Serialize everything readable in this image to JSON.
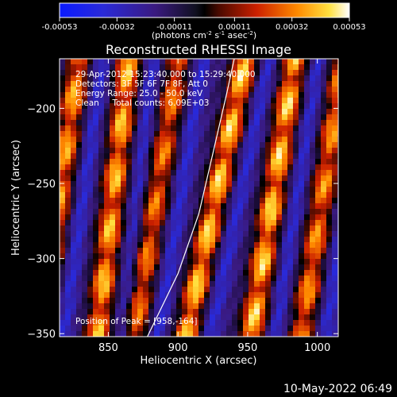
{
  "chart_data": {
    "type": "heatmap",
    "title": "Reconstructed RHESSI Image",
    "xlabel": "Heliocentric X (arcsec)",
    "ylabel": "Heliocentric Y (arcsec)",
    "xlim": [
      815,
      1015
    ],
    "ylim": [
      -352,
      -167
    ],
    "x_ticks": [
      850,
      900,
      950,
      1000
    ],
    "y_ticks": [
      -200,
      -250,
      -300,
      -350
    ],
    "colorbar": {
      "ticks": [
        "-0.00053",
        "-0.00032",
        "-0.00011",
        "0.00011",
        "0.00032",
        "0.00053"
      ],
      "range": [
        -0.00053,
        0.00053
      ],
      "unit_label": "(photons cm",
      "unit_sup1": "-2",
      "unit_mid": " s",
      "unit_sup2": "-1",
      "unit_mid2": " asec",
      "unit_sup3": "-2",
      "unit_end": ")"
    },
    "annotations": [
      "29-Apr-2012 15:23:40.000 to 15:29:40.000",
      "Detectors: 3F 5F 6F 7F 8F, Att 0",
      "Energy Range: 25.0 - 50.0 keV",
      "Clean     Total counts: 6.09E+03"
    ],
    "peak_label": "Position of Peak = [958,-164]",
    "limb_curve": [
      [
        878,
        -352
      ],
      [
        900,
        -310
      ],
      [
        915,
        -270
      ],
      [
        925,
        -230
      ],
      [
        935,
        -190
      ],
      [
        942,
        -160
      ]
    ],
    "bright_ridges": [
      {
        "x_top": 830,
        "x_bottom": 800,
        "y_top": -160,
        "y_bottom": -355,
        "peak": 0.85
      },
      {
        "x_top": 865,
        "x_bottom": 842,
        "y_top": -165,
        "y_bottom": -355,
        "peak": 0.9
      },
      {
        "x_top": 900,
        "x_bottom": 868,
        "y_top": -170,
        "y_bottom": -355,
        "peak": 0.75
      },
      {
        "x_top": 950,
        "x_bottom": 905,
        "y_top": -160,
        "y_bottom": -355,
        "peak": 0.95
      },
      {
        "x_top": 985,
        "x_bottom": 952,
        "y_top": -160,
        "y_bottom": -355,
        "peak": 0.95
      },
      {
        "x_top": 1020,
        "x_bottom": 988,
        "y_top": -160,
        "y_bottom": -355,
        "peak": 0.8
      }
    ]
  },
  "timestamp": "10-May-2022 06:49"
}
